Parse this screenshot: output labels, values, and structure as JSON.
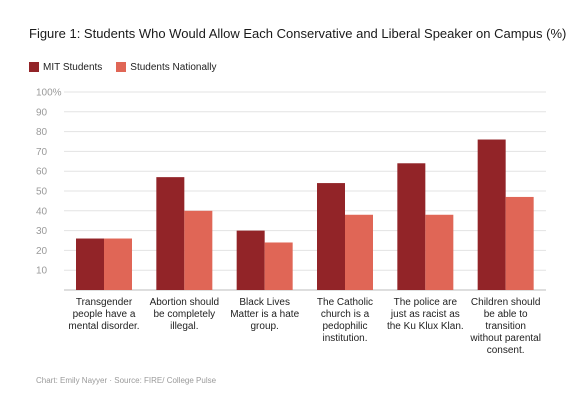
{
  "chart_data": {
    "type": "bar",
    "title": "Figure 1: Students Who Would Allow Each Conservative and Liberal Speaker on Campus (%)",
    "categories": [
      [
        "Transgender",
        "people have a",
        "mental disorder."
      ],
      [
        "Abortion should",
        "be completely",
        "illegal."
      ],
      [
        "Black Lives",
        "Matter is a hate",
        "group."
      ],
      [
        "The Catholic",
        "church is a",
        "pedophilic",
        "institution."
      ],
      [
        "The police are",
        "just as racist as",
        "the Ku Klux Klan."
      ],
      [
        "Children should",
        "be able to",
        "transition",
        "without parental",
        "consent."
      ]
    ],
    "series": [
      {
        "name": "MIT Students",
        "color": "#922428",
        "values": [
          26,
          57,
          30,
          54,
          64,
          76
        ]
      },
      {
        "name": "Students Nationally",
        "color": "#e06656",
        "values": [
          26,
          40,
          24,
          38,
          38,
          47
        ]
      }
    ],
    "yticks": [
      "100%",
      "90",
      "80",
      "70",
      "60",
      "50",
      "40",
      "30",
      "20",
      "10"
    ],
    "ylim": [
      0,
      100
    ],
    "grid": true,
    "legend_position": "top-left"
  },
  "footer": "Chart: Emily Nayyer  ·  Source: FIRE/ College Pulse"
}
